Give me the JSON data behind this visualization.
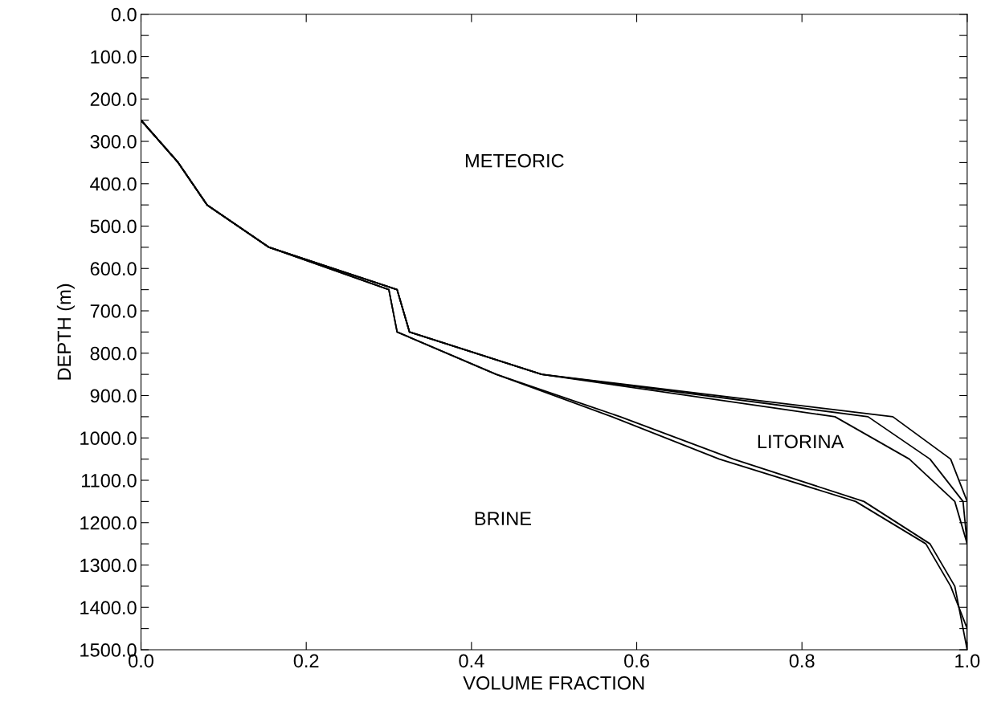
{
  "chart_data": {
    "type": "line",
    "xlabel": "VOLUME FRACTION",
    "ylabel": "DEPTH (m)",
    "xlim": [
      0,
      1
    ],
    "ylim": [
      1500,
      0
    ],
    "xticks": [
      {
        "value": 0,
        "label": "0.0"
      },
      {
        "value": 0.2,
        "label": "0.2"
      },
      {
        "value": 0.4,
        "label": "0.4"
      },
      {
        "value": 0.6,
        "label": "0.6"
      },
      {
        "value": 0.8,
        "label": "0.8"
      },
      {
        "value": 1,
        "label": "1.0"
      }
    ],
    "yticks": [
      {
        "value": 0,
        "label": "0.0"
      },
      {
        "value": 50,
        "label": null
      },
      {
        "value": 100,
        "label": "100.0"
      },
      {
        "value": 150,
        "label": null
      },
      {
        "value": 200,
        "label": "200.0"
      },
      {
        "value": 250,
        "label": null
      },
      {
        "value": 300,
        "label": "300.0"
      },
      {
        "value": 350,
        "label": null
      },
      {
        "value": 400,
        "label": "400.0"
      },
      {
        "value": 450,
        "label": null
      },
      {
        "value": 500,
        "label": "500.0"
      },
      {
        "value": 550,
        "label": null
      },
      {
        "value": 600,
        "label": "600.0"
      },
      {
        "value": 650,
        "label": null
      },
      {
        "value": 700,
        "label": "700.0"
      },
      {
        "value": 750,
        "label": null
      },
      {
        "value": 800,
        "label": "800.0"
      },
      {
        "value": 850,
        "label": null
      },
      {
        "value": 900,
        "label": "900.0"
      },
      {
        "value": 950,
        "label": null
      },
      {
        "value": 1000,
        "label": "1000.0"
      },
      {
        "value": 1050,
        "label": null
      },
      {
        "value": 1100,
        "label": "1100.0"
      },
      {
        "value": 1150,
        "label": null
      },
      {
        "value": 1200,
        "label": "1200.0"
      },
      {
        "value": 1250,
        "label": null
      },
      {
        "value": 1300,
        "label": "1300.0"
      },
      {
        "value": 1350,
        "label": null
      },
      {
        "value": 1400,
        "label": "1400.0"
      },
      {
        "value": 1450,
        "label": null
      },
      {
        "value": 1500,
        "label": "1500.0"
      }
    ],
    "grid": false,
    "marker": "none",
    "line_style": "solid",
    "series": [
      {
        "color": "#000000",
        "x": [
          0,
          0.045,
          0.08,
          0.155,
          0.31,
          0.325,
          0.485,
          0.91,
          0.98,
          1.0,
          1.0
        ],
        "values": [
          250,
          350,
          450,
          550,
          650,
          750,
          850,
          950,
          1050,
          1150,
          1500
        ]
      },
      {
        "color": "#000000",
        "x": [
          0,
          0.045,
          0.08,
          0.155,
          0.31,
          0.325,
          0.485,
          0.88,
          0.955,
          0.995,
          1.0
        ],
        "values": [
          250,
          350,
          450,
          550,
          650,
          750,
          850,
          950,
          1050,
          1150,
          1250
        ]
      },
      {
        "color": "#000000",
        "x": [
          0,
          0.045,
          0.08,
          0.155,
          0.31,
          0.325,
          0.485,
          0.84,
          0.93,
          0.985,
          1.0
        ],
        "values": [
          250,
          350,
          450,
          550,
          650,
          750,
          850,
          950,
          1050,
          1150,
          1250
        ]
      },
      {
        "color": "#000000",
        "x": [
          0,
          0.045,
          0.08,
          0.155,
          0.3,
          0.31,
          0.43,
          0.57,
          0.7,
          0.865,
          0.95,
          0.98,
          1.0,
          1.0
        ],
        "values": [
          250,
          350,
          450,
          550,
          650,
          750,
          850,
          950,
          1050,
          1150,
          1250,
          1350,
          1450,
          1500
        ]
      },
      {
        "color": "#000000",
        "x": [
          0,
          0.045,
          0.08,
          0.155,
          0.3,
          0.31,
          0.43,
          0.58,
          0.717,
          0.875,
          0.955,
          0.985,
          0.995,
          1.0
        ],
        "values": [
          250,
          350,
          450,
          550,
          650,
          750,
          850,
          950,
          1050,
          1150,
          1250,
          1350,
          1450,
          1500
        ]
      }
    ],
    "annotations": [
      "METEORIC",
      "LITORINA",
      "BRINE"
    ]
  }
}
